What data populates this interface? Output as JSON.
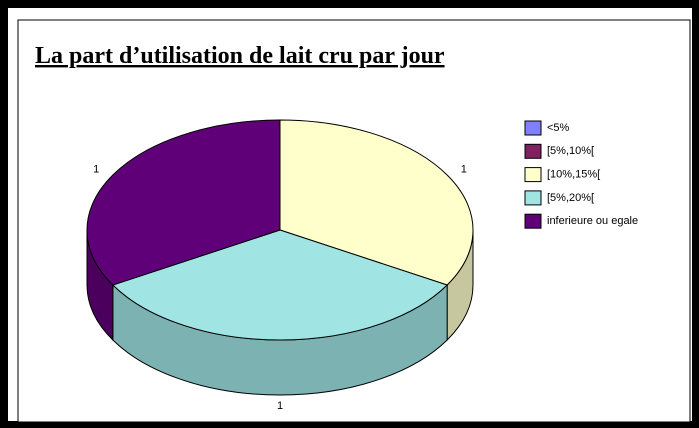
{
  "chart_data": {
    "type": "pie3d",
    "title": "La part d’utilisation de lait cru par jour",
    "categories": [
      "<5%",
      "[5%,10%[",
      "[10%,15%[",
      "[5%,20%[",
      "inferieure ou egale"
    ],
    "values": [
      0,
      0,
      1,
      1,
      1
    ],
    "colors": [
      "#8080ff",
      "#802060",
      "#ffffcc",
      "#a0e4e4",
      "#600078"
    ],
    "legend": "right"
  }
}
